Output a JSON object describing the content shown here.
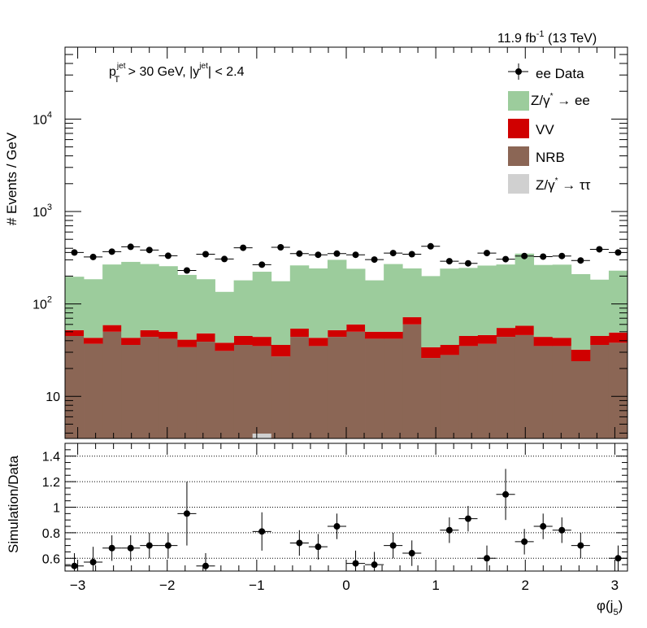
{
  "header": {
    "lumi": "11.9 fb",
    "lumi_exp": "-1",
    "energy": "(13 TeV)"
  },
  "cuts": {
    "pt_label": "p",
    "pt_sub": "T",
    "pt_sup": "jet",
    "pt_cut": " > 30 GeV,  |y",
    "y_sup": "jet",
    "y_cut": "| < 2.4"
  },
  "legend": [
    {
      "key": "data",
      "label": "ee Data",
      "color": "#000000"
    },
    {
      "key": "zee",
      "label": "Z/γ* → ee",
      "color": "#9ccc9c"
    },
    {
      "key": "vv",
      "label": "VV",
      "color": "#d00000"
    },
    {
      "key": "nrb",
      "label": "NRB",
      "color": "#8b6655"
    },
    {
      "key": "ztt",
      "label": "Z/γ* → ττ",
      "color": "#d0d0d0"
    }
  ],
  "chart_data": {
    "type": "bar",
    "stacked": true,
    "log_y": true,
    "x_edges": [
      -3.1416,
      -2.9322,
      -2.7227,
      -2.5133,
      -2.3038,
      -2.0944,
      -1.885,
      -1.6755,
      -1.4661,
      -1.2566,
      -1.0472,
      -0.8378,
      -0.6283,
      -0.4189,
      -0.2094,
      0.0,
      0.2094,
      0.4189,
      0.6283,
      0.8378,
      1.0472,
      1.2566,
      1.4661,
      1.6755,
      1.885,
      2.0944,
      2.3038,
      2.5133,
      2.7227,
      2.9322,
      3.1416
    ],
    "xlabel": "φ(j",
    "xlabel_sub": "5",
    "xlabel_end": ")",
    "ylabel": "# Events / GeV",
    "xlim": [
      -3.1416,
      3.1416
    ],
    "ylim": [
      3.5,
      60000
    ],
    "x_ticks": [
      "−3",
      "−2",
      "−1",
      "0",
      "1",
      "2",
      "3"
    ],
    "x_tick_values": [
      -3,
      -2,
      -1,
      0,
      1,
      2,
      3
    ],
    "y_ticks": [
      {
        "value": 10,
        "label": "10",
        "exp": ""
      },
      {
        "value": 100,
        "label": "10",
        "exp": "2"
      },
      {
        "value": 1000,
        "label": "10",
        "exp": "3"
      },
      {
        "value": 10000,
        "label": "10",
        "exp": "4"
      }
    ],
    "series": [
      {
        "key": "nrb",
        "name": "NRB",
        "values": [
          45,
          37,
          50,
          36,
          44,
          42,
          34,
          39,
          31,
          36,
          35,
          27,
          44,
          35,
          44,
          50,
          42,
          42,
          60,
          26,
          28,
          35,
          37,
          44,
          46,
          35,
          35,
          24,
          36,
          38
        ]
      },
      {
        "key": "vv",
        "name": "VV",
        "values": [
          7,
          6,
          9,
          7,
          8,
          8,
          7,
          9,
          7,
          9,
          9,
          9,
          10,
          8,
          8,
          10,
          8,
          8,
          12,
          8,
          8,
          10,
          9,
          11,
          12,
          9,
          8,
          8,
          9,
          11
        ]
      },
      {
        "key": "zee",
        "name": "Z/γ* → ee",
        "values": [
          145,
          142,
          208,
          242,
          218,
          206,
          165,
          137,
          97,
          135,
          179,
          140,
          207,
          199,
          248,
          180,
          130,
          220,
          170,
          166,
          205,
          200,
          214,
          212,
          292,
          220,
          223,
          178,
          138,
          180
        ]
      },
      {
        "key": "ztt",
        "name": "Z/γ* → ττ",
        "values": [
          0,
          0,
          0,
          0,
          0,
          0,
          0,
          0,
          0,
          0,
          0,
          0,
          0,
          0,
          0,
          0,
          0,
          0,
          0,
          0,
          0,
          0,
          0,
          0,
          0,
          0,
          0,
          0,
          0,
          0
        ]
      }
    ],
    "ztt_hint": [
      {
        "bin": 10,
        "value": 3.4
      }
    ],
    "data": {
      "name": "ee Data",
      "values": [
        360,
        322,
        368,
        415,
        383,
        332,
        230,
        345,
        306,
        405,
        266,
        410,
        350,
        340,
        350,
        340,
        302,
        355,
        345,
        420,
        290,
        275,
        355,
        305,
        330,
        325,
        330,
        295,
        390,
        360
      ],
      "errors": [
        19,
        18,
        19,
        20,
        20,
        18,
        15,
        19,
        17,
        20,
        16,
        20,
        19,
        18,
        19,
        18,
        17,
        19,
        19,
        20,
        17,
        17,
        19,
        17,
        18,
        18,
        18,
        17,
        20,
        19
      ]
    },
    "ratio": {
      "ylabel": "Simulation/Data",
      "ylim": [
        0.5,
        1.5
      ],
      "y_ticks": [
        "0.6",
        "0.8",
        "1",
        "1.2",
        "1.4"
      ],
      "y_tick_values": [
        0.6,
        0.8,
        1.0,
        1.2,
        1.4
      ],
      "values": [
        0.54,
        0.57,
        0.68,
        0.68,
        0.7,
        0.7,
        0.95,
        0.54,
        null,
        null,
        0.81,
        null,
        0.72,
        0.69,
        0.85,
        0.56,
        0.55,
        0.7,
        0.64,
        null,
        0.82,
        0.91,
        0.6,
        1.1,
        0.73,
        0.85,
        0.82,
        0.7,
        null,
        0.6
      ],
      "errors": [
        0.1,
        0.12,
        0.1,
        0.1,
        0.1,
        0.1,
        0.25,
        0.1,
        null,
        null,
        0.15,
        null,
        0.1,
        0.1,
        0.1,
        0.1,
        0.1,
        0.1,
        0.1,
        null,
        0.1,
        0.1,
        0.1,
        0.2,
        0.1,
        0.1,
        0.1,
        0.1,
        null,
        0.1
      ]
    }
  }
}
